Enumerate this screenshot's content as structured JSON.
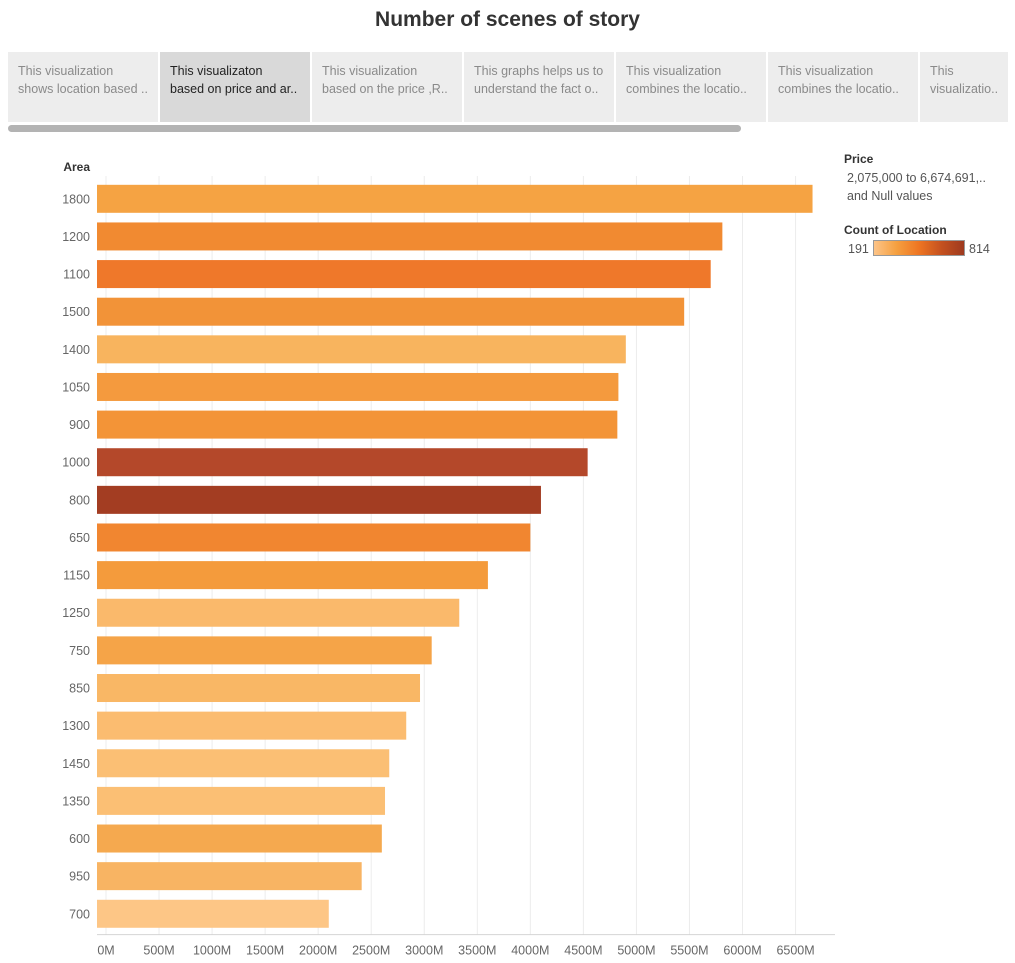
{
  "title": "Number of scenes of story",
  "tabs": [
    {
      "line1": "This visualization",
      "line2": "shows location based ..",
      "active": false
    },
    {
      "line1": "This visualizaton",
      "line2": "based on price and ar..",
      "active": true
    },
    {
      "line1": "This visualization",
      "line2": "based on the price ,R..",
      "active": false
    },
    {
      "line1": "This graphs helps us to",
      "line2": "understand the fact o..",
      "active": false
    },
    {
      "line1": "This visualization",
      "line2": "combines the locatio..",
      "active": false
    },
    {
      "line1": "This visualization",
      "line2": "combines the locatio..",
      "active": false
    },
    {
      "line1": "This",
      "line2": "visualizatio..",
      "active": false
    }
  ],
  "legend": {
    "filter_title": "Price",
    "filter_line1": "2,075,000 to 6,674,691,..",
    "filter_line2": "and Null values",
    "color_title": "Count of Location",
    "color_min": "191",
    "color_max": "814",
    "ramp_colors": [
      "#fdc488",
      "#f5a040",
      "#ee7522",
      "#c4511f",
      "#9e3a1f"
    ]
  },
  "chart_data": {
    "type": "bar",
    "orientation": "horizontal",
    "ylabel": "Area",
    "xlabel": "",
    "categories": [
      "1800",
      "1200",
      "1100",
      "1500",
      "1400",
      "1050",
      "900",
      "1000",
      "800",
      "650",
      "1150",
      "1250",
      "750",
      "850",
      "1300",
      "1450",
      "1350",
      "600",
      "950",
      "700"
    ],
    "values": [
      6660,
      5810,
      5700,
      5450,
      4900,
      4830,
      4820,
      4540,
      4100,
      4000,
      3600,
      3330,
      3070,
      2960,
      2830,
      2670,
      2630,
      2600,
      2410,
      2100
    ],
    "colors": [
      "#f5a343",
      "#f18a31",
      "#ef782a",
      "#f29338",
      "#f8b45e",
      "#f49a3e",
      "#f39437",
      "#b4482a",
      "#a33d22",
      "#f18630",
      "#f49b3c",
      "#fab96b",
      "#f5a448",
      "#f9b765",
      "#fbbc70",
      "#fbbf74",
      "#fbbf74",
      "#f5a94f",
      "#f8b463",
      "#fdc686"
    ],
    "xticks": [
      0,
      500,
      1000,
      1500,
      2000,
      2500,
      3000,
      3500,
      4000,
      4500,
      5000,
      5500,
      6000,
      6500
    ],
    "xtick_labels": [
      "0M",
      "500M",
      "1000M",
      "1500M",
      "2000M",
      "2500M",
      "3000M",
      "3500M",
      "4000M",
      "4500M",
      "5000M",
      "5500M",
      "6000M",
      "6500M"
    ],
    "xlim": [
      0,
      6900
    ],
    "grid": true,
    "legend_position": "right"
  }
}
